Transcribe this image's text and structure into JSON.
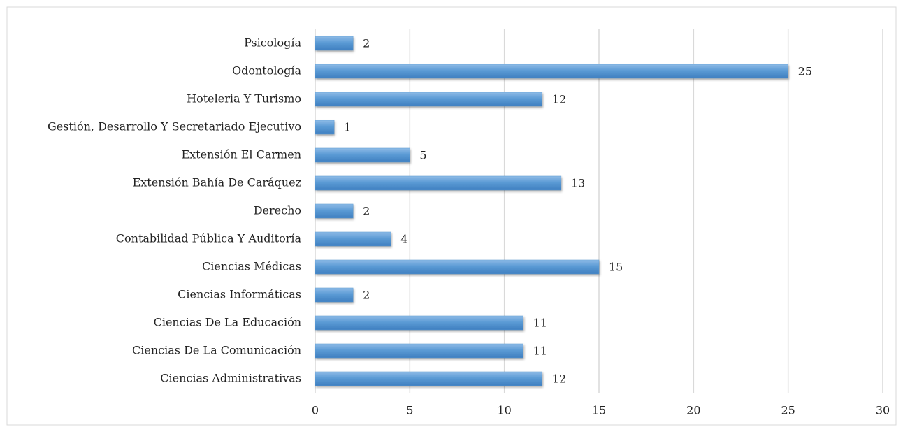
{
  "chart_data": {
    "type": "hbar",
    "categories": [
      "Psicología",
      "Odontología",
      "Hoteleria Y Turismo",
      "Gestión, Desarrollo Y Secretariado Ejecutivo",
      "Extensión El Carmen",
      "Extensión Bahía De Caráquez",
      "Derecho",
      "Contabilidad Pública Y Auditoría",
      "Ciencias Médicas",
      "Ciencias Informáticas",
      "Ciencias De La Educación",
      "Ciencias De La Comunicación",
      "Ciencias Administrativas"
    ],
    "values": [
      2,
      25,
      12,
      1,
      5,
      13,
      2,
      4,
      15,
      2,
      11,
      11,
      12
    ],
    "color": "#5b9bd5",
    "xlim": [
      0,
      30
    ],
    "xticks": [
      0,
      5,
      10,
      15,
      20,
      25,
      30
    ],
    "grid": true
  }
}
